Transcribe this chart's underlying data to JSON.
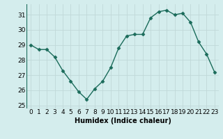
{
  "x": [
    0,
    1,
    2,
    3,
    4,
    5,
    6,
    7,
    8,
    9,
    10,
    11,
    12,
    13,
    14,
    15,
    16,
    17,
    18,
    19,
    20,
    21,
    22,
    23
  ],
  "y": [
    29.0,
    28.7,
    28.7,
    28.2,
    27.3,
    26.6,
    25.9,
    25.4,
    26.1,
    26.6,
    27.5,
    28.8,
    29.6,
    29.7,
    29.7,
    30.8,
    31.2,
    31.3,
    31.0,
    31.1,
    30.5,
    29.2,
    28.4,
    27.2
  ],
  "line_color": "#1a6b5a",
  "marker": "D",
  "marker_size": 2.5,
  "bg_color": "#d4eded",
  "grid_color": "#c0d8d8",
  "xlabel": "Humidex (Indice chaleur)",
  "ylim": [
    24.8,
    31.7
  ],
  "xlim": [
    -0.5,
    23.5
  ],
  "yticks": [
    25,
    26,
    27,
    28,
    29,
    30,
    31
  ],
  "xticks": [
    0,
    1,
    2,
    3,
    4,
    5,
    6,
    7,
    8,
    9,
    10,
    11,
    12,
    13,
    14,
    15,
    16,
    17,
    18,
    19,
    20,
    21,
    22,
    23
  ],
  "xlabel_fontsize": 7,
  "tick_fontsize": 6.5,
  "linewidth": 1.0
}
